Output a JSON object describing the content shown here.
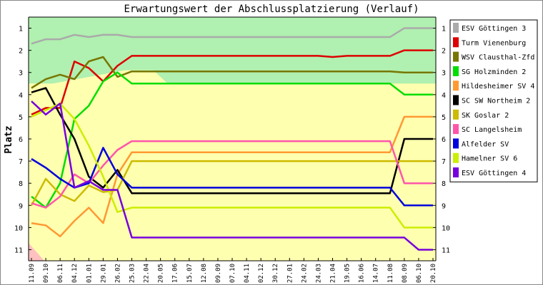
{
  "chart_data": {
    "type": "line",
    "title": "Erwartungswert der Abschlussplatzierung (Verlauf)",
    "ylabel": "Platz",
    "xlabel": "",
    "ylim": [
      11.5,
      0.5
    ],
    "y_ticks": [
      "1",
      "2",
      "3",
      "4",
      "5",
      "6",
      "7",
      "8",
      "9",
      "10",
      "11"
    ],
    "grid": false,
    "legend_position": "right",
    "categories": [
      "11.09",
      "09.10",
      "06.11",
      "04.12",
      "01.01",
      "29.01",
      "26.02",
      "25.03",
      "22.04",
      "20.05",
      "17.06",
      "15.07",
      "12.08",
      "09.09",
      "07.10",
      "04.11",
      "02.12",
      "30.12",
      "27.01",
      "24.02",
      "24.03",
      "21.04",
      "19.05",
      "16.06",
      "14.07",
      "11.08",
      "08.09",
      "06.10",
      "20.10"
    ],
    "background_bands": [
      {
        "name": "green",
        "color": "#b0f0b0",
        "y_from": 0.5,
        "y_to": 3.5
      },
      {
        "name": "yellow",
        "color": "#ffffb0",
        "y_from": 3.5,
        "y_to": 11.5
      },
      {
        "name": "red",
        "color": "#ffc0c0",
        "y_from": 11.5,
        "y_to": 11.5
      }
    ],
    "series": [
      {
        "name": "ESV Göttingen 3",
        "color": "#aaaaaa",
        "values": [
          1.7,
          1.5,
          1.5,
          1.3,
          1.4,
          1.3,
          1.3,
          1.4,
          1.4,
          1.4,
          1.4,
          1.4,
          1.4,
          1.4,
          1.4,
          1.4,
          1.4,
          1.4,
          1.4,
          1.4,
          1.4,
          1.4,
          1.4,
          1.4,
          1.4,
          1.4,
          1.0,
          1.0,
          1.0
        ]
      },
      {
        "name": "Turm Vienenburg",
        "color": "#dd0000",
        "values": [
          4.9,
          4.6,
          4.6,
          2.5,
          2.8,
          3.4,
          2.7,
          2.25,
          2.25,
          2.25,
          2.25,
          2.25,
          2.25,
          2.25,
          2.25,
          2.25,
          2.25,
          2.25,
          2.25,
          2.25,
          2.25,
          2.3,
          2.25,
          2.25,
          2.25,
          2.25,
          2.0,
          2.0,
          2.0
        ]
      },
      {
        "name": "WSV Clausthal-Zfd",
        "color": "#777700",
        "values": [
          3.7,
          3.3,
          3.1,
          3.3,
          2.5,
          2.3,
          3.2,
          2.95,
          2.95,
          2.95,
          2.95,
          2.95,
          2.95,
          2.95,
          2.95,
          2.95,
          2.95,
          2.95,
          2.95,
          2.95,
          2.95,
          2.95,
          2.95,
          2.95,
          2.95,
          2.95,
          3.0,
          3.0,
          3.0
        ]
      },
      {
        "name": "SG Holzminden 2",
        "color": "#00dd00",
        "values": [
          8.6,
          9.1,
          8.0,
          5.1,
          4.5,
          3.4,
          3.0,
          3.5,
          3.5,
          3.5,
          3.5,
          3.5,
          3.5,
          3.5,
          3.5,
          3.5,
          3.5,
          3.5,
          3.5,
          3.5,
          3.5,
          3.5,
          3.5,
          3.5,
          3.5,
          3.5,
          4.0,
          4.0,
          4.0
        ]
      },
      {
        "name": "Hildesheimer SV 4",
        "color": "#ff9933",
        "values": [
          9.8,
          9.9,
          10.4,
          9.7,
          9.1,
          9.8,
          7.6,
          6.6,
          6.6,
          6.6,
          6.6,
          6.6,
          6.6,
          6.6,
          6.6,
          6.6,
          6.6,
          6.6,
          6.6,
          6.6,
          6.6,
          6.6,
          6.6,
          6.6,
          6.6,
          6.6,
          5.0,
          5.0,
          5.0
        ]
      },
      {
        "name": "SC SW Northeim 2",
        "color": "#000000",
        "values": [
          3.9,
          3.7,
          4.9,
          6.0,
          7.7,
          8.2,
          7.4,
          8.45,
          8.45,
          8.45,
          8.45,
          8.45,
          8.45,
          8.45,
          8.45,
          8.45,
          8.45,
          8.45,
          8.45,
          8.45,
          8.45,
          8.45,
          8.45,
          8.45,
          8.45,
          8.45,
          6.0,
          6.0,
          6.0
        ]
      },
      {
        "name": "SK Goslar 2",
        "color": "#ccbb00",
        "values": [
          9.0,
          7.8,
          8.5,
          8.8,
          8.1,
          8.4,
          8.3,
          7.0,
          7.0,
          7.0,
          7.0,
          7.0,
          7.0,
          7.0,
          7.0,
          7.0,
          7.0,
          7.0,
          7.0,
          7.0,
          7.0,
          7.0,
          7.0,
          7.0,
          7.0,
          7.0,
          7.0,
          7.0,
          7.0
        ]
      },
      {
        "name": "SC Langelsheim",
        "color": "#ff55aa",
        "values": [
          8.9,
          9.1,
          8.6,
          7.6,
          8.0,
          7.2,
          6.5,
          6.1,
          6.1,
          6.1,
          6.1,
          6.1,
          6.1,
          6.1,
          6.1,
          6.1,
          6.1,
          6.1,
          6.1,
          6.1,
          6.1,
          6.1,
          6.1,
          6.1,
          6.1,
          6.1,
          8.0,
          8.0,
          8.0
        ]
      },
      {
        "name": "Alfelder SV",
        "color": "#0000dd",
        "values": [
          6.9,
          7.3,
          7.8,
          8.2,
          8.0,
          6.4,
          7.6,
          8.2,
          8.2,
          8.2,
          8.2,
          8.2,
          8.2,
          8.2,
          8.2,
          8.2,
          8.2,
          8.2,
          8.2,
          8.2,
          8.2,
          8.2,
          8.2,
          8.2,
          8.2,
          8.2,
          9.0,
          9.0,
          9.0
        ]
      },
      {
        "name": "Hamelner SV 6",
        "color": "#ccee00",
        "values": [
          5.0,
          4.7,
          4.4,
          5.1,
          6.3,
          7.7,
          9.3,
          9.1,
          9.1,
          9.1,
          9.1,
          9.1,
          9.1,
          9.1,
          9.1,
          9.1,
          9.1,
          9.1,
          9.1,
          9.1,
          9.1,
          9.1,
          9.1,
          9.1,
          9.1,
          9.1,
          10.0,
          10.0,
          10.0
        ]
      },
      {
        "name": "ESV Göttingen 4",
        "color": "#7700dd",
        "values": [
          4.3,
          4.9,
          4.4,
          8.2,
          7.9,
          8.3,
          8.3,
          10.45,
          10.45,
          10.45,
          10.45,
          10.45,
          10.45,
          10.45,
          10.45,
          10.45,
          10.45,
          10.45,
          10.45,
          10.45,
          10.45,
          10.45,
          10.45,
          10.45,
          10.45,
          10.45,
          10.45,
          11.0,
          11.0
        ]
      }
    ]
  }
}
